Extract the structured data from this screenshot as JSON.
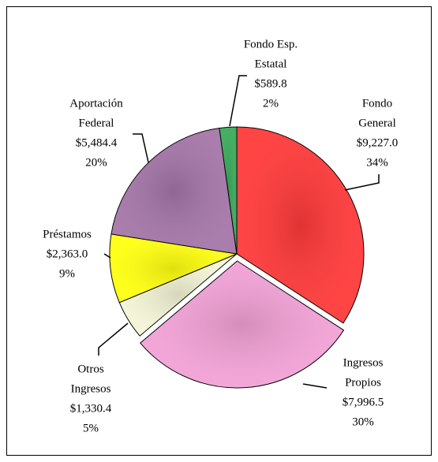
{
  "chart_data": {
    "type": "pie",
    "categories": [
      [
        "Fondo",
        "General"
      ],
      [
        "Ingresos",
        "Propios"
      ],
      [
        "Otros",
        "Ingresos"
      ],
      [
        "Préstamos"
      ],
      [
        "Aportación",
        "Federal"
      ],
      [
        "Fondo Esp.",
        "Estatal"
      ]
    ],
    "values": [
      9227.0,
      7996.5,
      1330.4,
      2363.0,
      5484.4,
      589.8
    ],
    "value_labels": [
      "$9,227.0",
      "$7,996.5",
      "$1,330.4",
      "$2,363.0",
      "$5,484.4",
      "$589.8"
    ],
    "percents": [
      34,
      30,
      5,
      9,
      20,
      2
    ],
    "percent_labels": [
      "34%",
      "30%",
      "5%",
      "9%",
      "20%",
      "2%"
    ],
    "colors": [
      "#ff3a3a",
      "#f2a2d6",
      "#f4f4d6",
      "#ffff10",
      "#a476a8",
      "#3aaa5a"
    ],
    "exploded": [
      false,
      true,
      false,
      false,
      false,
      false
    ]
  }
}
